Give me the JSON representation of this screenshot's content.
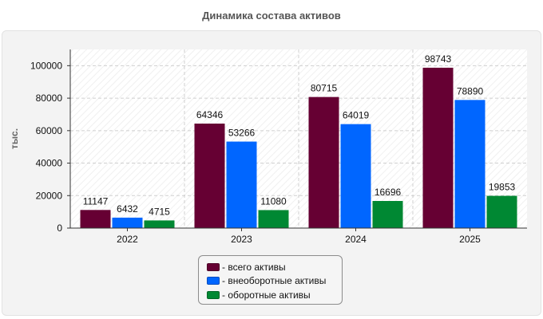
{
  "chart_data": {
    "type": "bar",
    "title": "Динамика состава активов",
    "ylabel": "тыс.",
    "xlabel": "",
    "categories": [
      "2022",
      "2023",
      "2024",
      "2025"
    ],
    "series": [
      {
        "name": "всего активы",
        "color": "#660033",
        "values": [
          11147,
          64346,
          80715,
          98743
        ]
      },
      {
        "name": "внеоборотные активы",
        "color": "#0066ff",
        "values": [
          6432,
          53266,
          64019,
          78890
        ]
      },
      {
        "name": "оборотные активы",
        "color": "#008833",
        "values": [
          4715,
          11080,
          16696,
          19853
        ]
      }
    ],
    "yticks": [
      0,
      20000,
      40000,
      60000,
      80000,
      100000
    ],
    "ylim": [
      0,
      110000
    ],
    "grid": true,
    "legend_position": "bottom",
    "legend_prefix": "- "
  }
}
